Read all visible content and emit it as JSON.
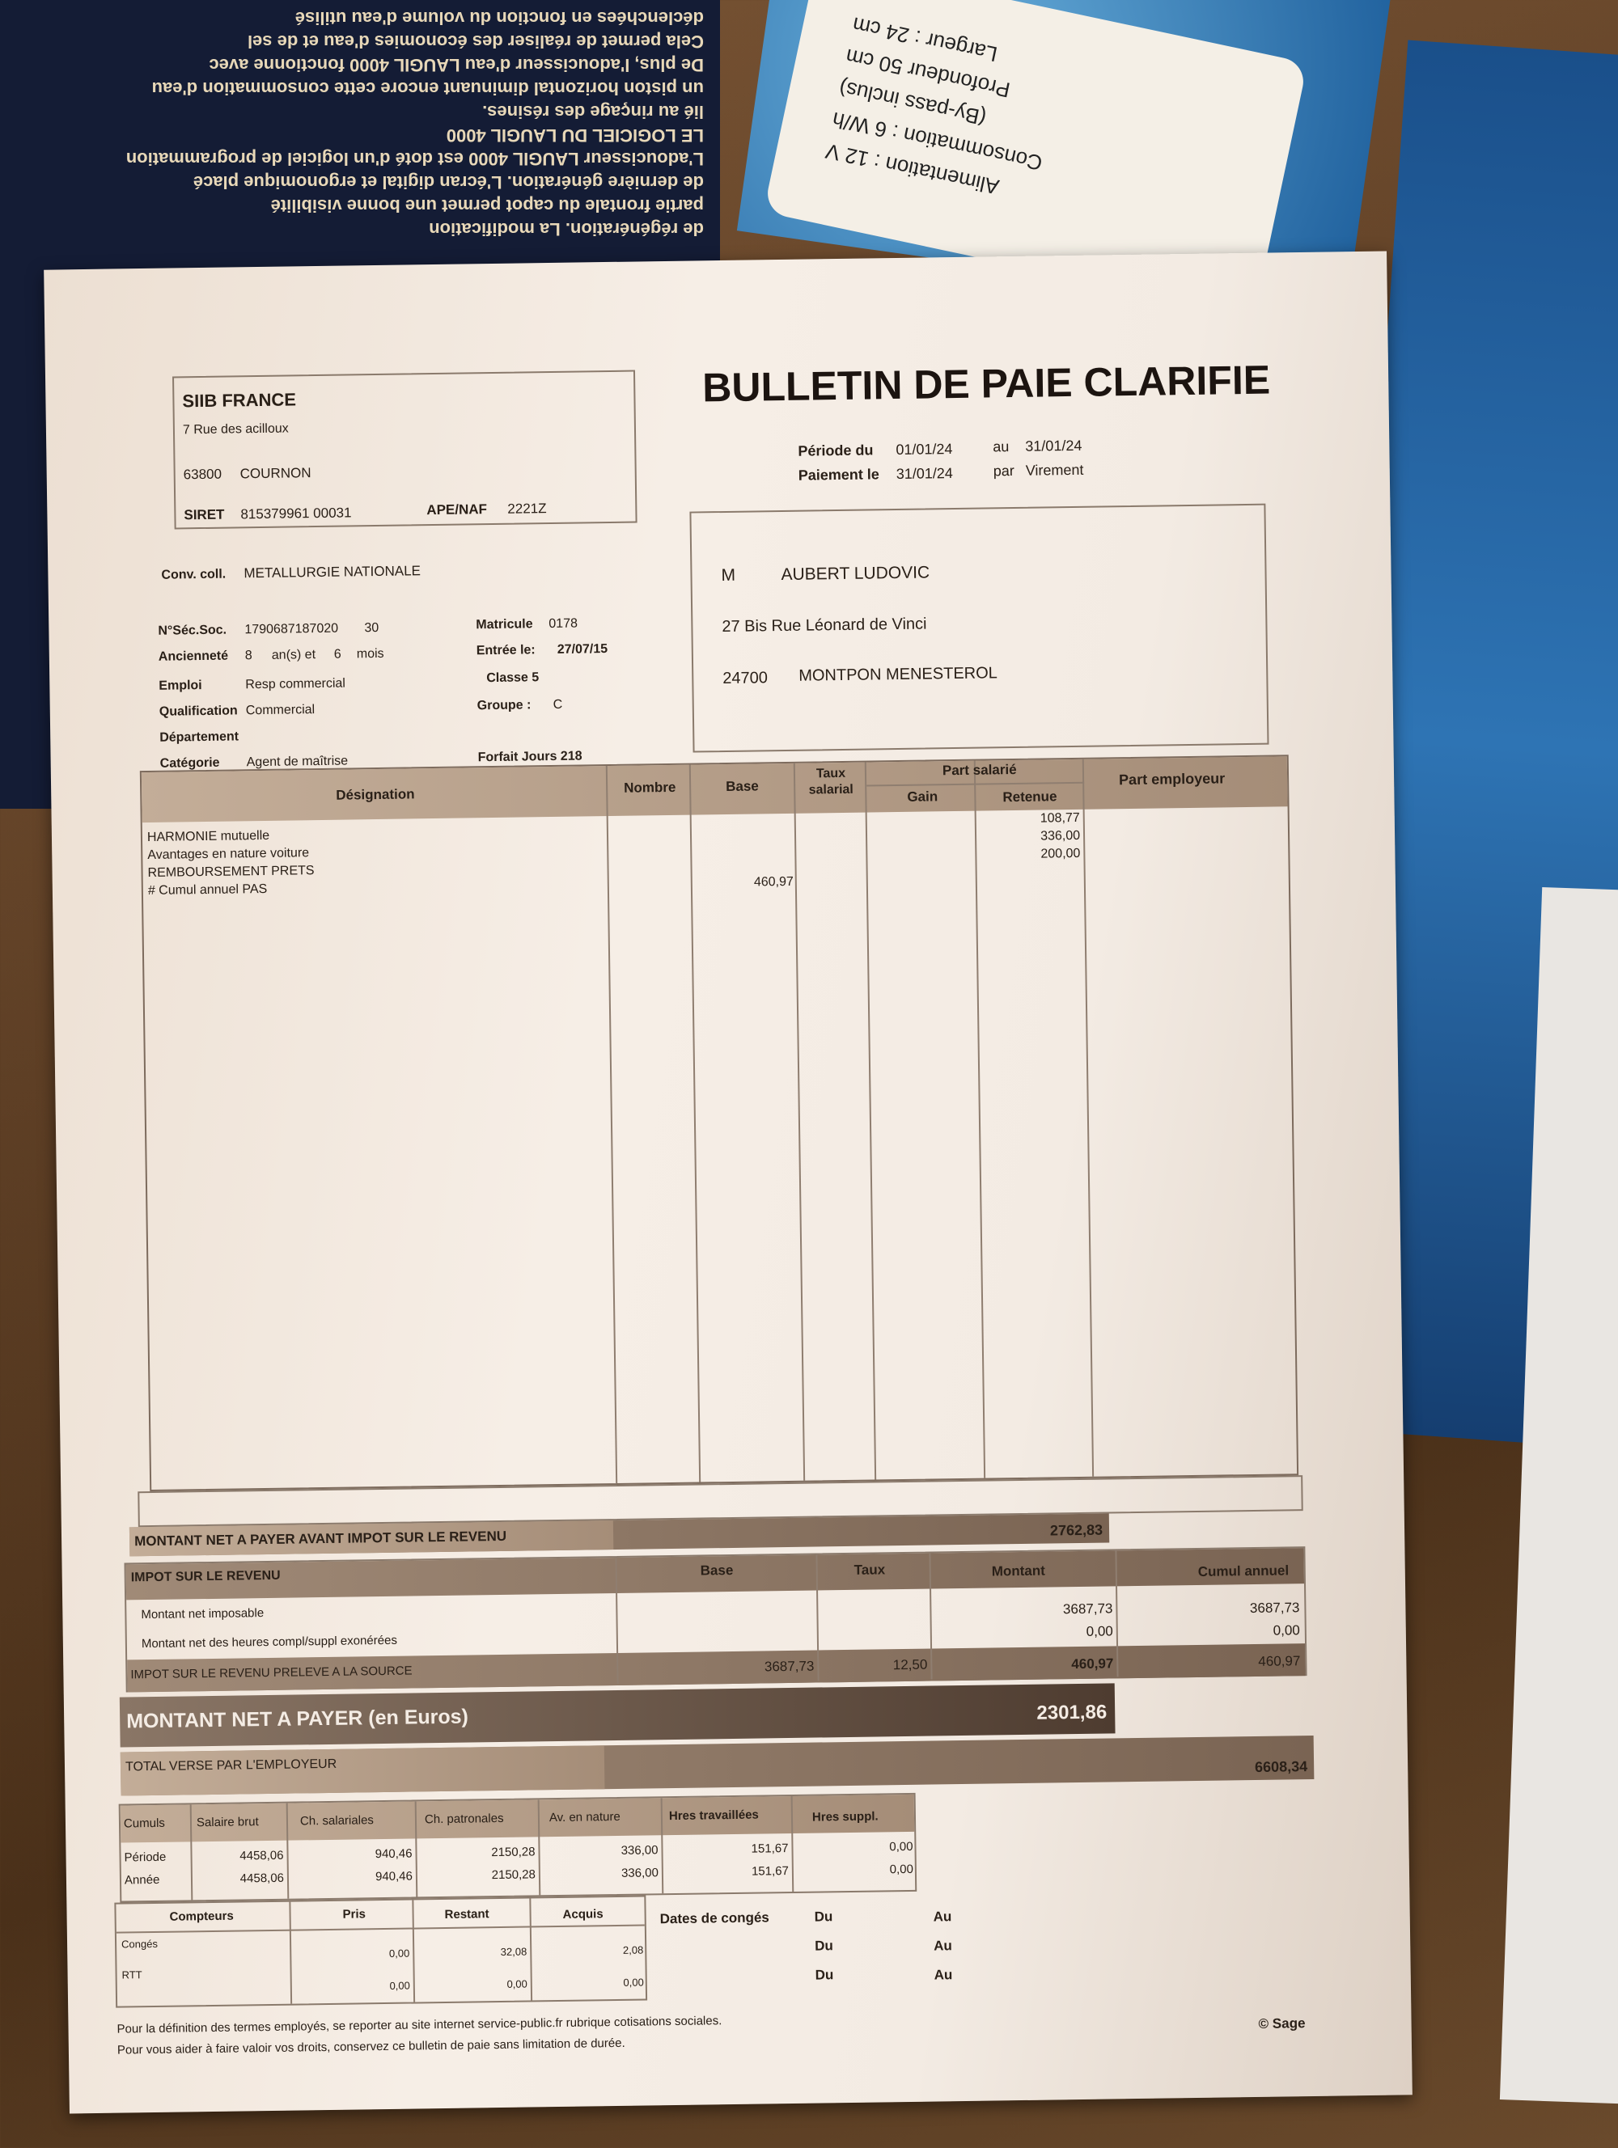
{
  "background": {
    "brochure_lines": [
      "de régénération. La modification",
      "partie frontale du capot permet une bonne visibilité",
      "de dernière génération. L'écran digital et ergonomique placé",
      "L'adoucisseur LAUGIL 4000 est doté d'un logiciel de programmation",
      "LE LOGICIEL DU LAUGIL 4000",
      "lié au rinçage des résines.",
      "un piston horizontal diminuant encore cette consommation d'eau",
      "De plus, l'adoucisseur d'eau LAUGIL 4000 fonctionne avec",
      "Cela permet de réaliser des économies d'eau et de sel",
      "déclenchées en fonction du volume d'eau utilisé"
    ],
    "spec_lines": [
      "Alimentation : 12 V",
      "Consommation : 6 W/h",
      "(By-pass inclus)",
      "Profondeur 50 cm",
      "Largeur : 24 cm"
    ]
  },
  "company": {
    "name": "SIIB FRANCE",
    "address": "7 Rue des acilloux",
    "postcode": "63800",
    "city": "COURNON",
    "siret_label": "SIRET",
    "siret": "815379961 00031",
    "ape_label": "APE/NAF",
    "ape": "2221Z"
  },
  "title": "BULLETIN DE PAIE CLARIFIE",
  "period": {
    "from_label": "Période du",
    "from": "01/01/24",
    "to_label": "au",
    "to": "31/01/24",
    "pay_label": "Paiement le",
    "pay_date": "31/01/24",
    "method_label": "par",
    "method": "Virement"
  },
  "employee": {
    "civility": "M",
    "name": "AUBERT LUDOVIC",
    "address": "27 Bis Rue Léonard de Vinci",
    "postcode": "24700",
    "city": "MONTPON MENESTEROL"
  },
  "info": {
    "conv_label": "Conv. coll.",
    "conv": "METALLURGIE NATIONALE",
    "secsoc_label": "N°Séc.Soc.",
    "secsoc": "179068718702​0",
    "secsoc_key": "30",
    "anc_label": "Ancienneté",
    "anc_years": "8",
    "anc_years_unit": "an(s) et",
    "anc_months": "6",
    "anc_months_unit": "mois",
    "emploi_label": "Emploi",
    "emploi": "Resp commercial",
    "qualif_label": "Qualification",
    "qualif": "Commercial",
    "dept_label": "Département",
    "cat_label": "Catégorie",
    "cat": "Agent de maîtrise",
    "matricule_label": "Matricule",
    "matricule": "0178",
    "entree_label": "Entrée le:",
    "entree": "27/07/15",
    "classe": "Classe 5",
    "groupe_label": "Groupe :",
    "groupe": "C",
    "forfait": "Forfait Jours 218"
  },
  "main_table": {
    "headers": {
      "designation": "Désignation",
      "nombre": "Nombre",
      "base": "Base",
      "taux": "Taux salarial",
      "part_salarie": "Part salarié",
      "gain": "Gain",
      "retenue": "Retenue",
      "part_employeur": "Part employeur"
    },
    "rows": [
      {
        "designation": "HARMONIE mutuelle",
        "base": "",
        "retenue": "108,77"
      },
      {
        "designation": "Avantages en nature voiture",
        "base": "",
        "retenue": "336,00"
      },
      {
        "designation": "REMBOURSEMENT PRETS",
        "base": "",
        "retenue": "200,00"
      },
      {
        "designation": "# Cumul annuel PAS",
        "base": "460,97",
        "retenue": ""
      }
    ]
  },
  "net_avant_impot": {
    "label": "MONTANT NET A PAYER AVANT IMPOT SUR LE REVENU",
    "value": "2762,83"
  },
  "impot": {
    "label": "IMPOT SUR LE REVENU",
    "base_h": "Base",
    "taux_h": "Taux",
    "montant_h": "Montant",
    "cumul_h": "Cumul annuel",
    "rows": [
      {
        "label": "Montant net imposable",
        "montant": "3687,73",
        "cumul": "3687,73"
      },
      {
        "label": "Montant net des heures compl/suppl exonérées",
        "montant": "0,00",
        "cumul": "0,00"
      }
    ],
    "pas": {
      "label": "IMPOT SUR LE REVENU PRELEVE A LA SOURCE",
      "base": "3687,73",
      "taux": "12,50",
      "montant": "460,97",
      "cumul": "460,97"
    }
  },
  "net_a_payer": {
    "label": "MONTANT NET A PAYER (en Euros)",
    "value": "2301,86"
  },
  "total_employeur": {
    "label": "TOTAL VERSE PAR L'EMPLOYEUR",
    "value": "6608,34"
  },
  "cumuls": {
    "headers": [
      "Cumuls",
      "Salaire brut",
      "Ch. salariales",
      "Ch. patronales",
      "Av. en nature",
      "Hres travaillées",
      "Hres suppl."
    ],
    "rows": [
      [
        "Période",
        "4458,06",
        "940,46",
        "2150,28",
        "336,00",
        "151,67",
        "0,00"
      ],
      [
        "Année",
        "4458,06",
        "940,46",
        "2150,28",
        "336,00",
        "151,67",
        "0,00"
      ]
    ]
  },
  "compteurs": {
    "headers": [
      "Compteurs",
      "Pris",
      "Restant",
      "Acquis"
    ],
    "rows": [
      [
        "Congés",
        "0,00",
        "32,08",
        "2,08"
      ],
      [
        "RTT",
        "0,00",
        "0,00",
        "0,00"
      ]
    ]
  },
  "conges": {
    "label": "Dates de congés",
    "du": "Du",
    "au": "Au"
  },
  "footer": {
    "line1": "Pour la définition des termes employés, se reporter au site internet service-public.fr rubrique cotisations sociales.",
    "line2": "Pour vous aider à faire valoir vos droits, conservez ce bulletin de paie sans limitation de durée.",
    "brand": "© Sage"
  }
}
